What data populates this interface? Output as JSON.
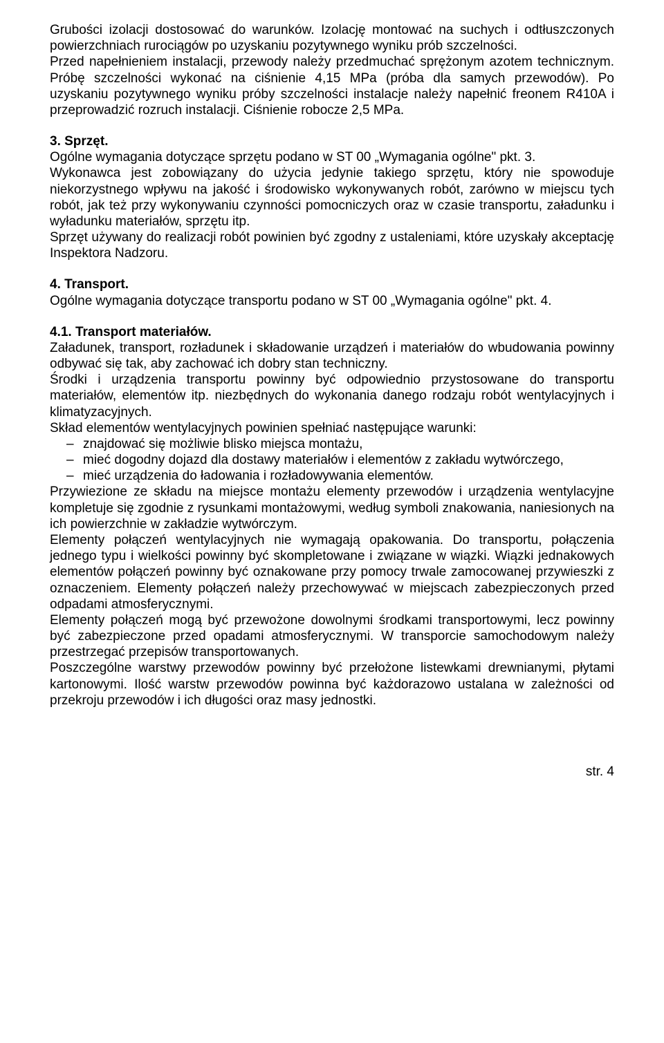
{
  "intro": {
    "p1": "Grubości izolacji dostosować do warunków. Izolację montować na suchych i odtłuszczonych powierzchniach rurociągów po uzyskaniu pozytywnego wyniku prób szczelności.",
    "p2": "Przed napełnieniem instalacji, przewody należy przedmuchać sprężonym azotem technicznym. Próbę szczelności wykonać na ciśnienie 4,15 MPa (próba dla samych przewodów). Po uzyskaniu pozytywnego wyniku próby szczelności instalacje należy napełnić freonem R410A i przeprowadzić rozruch instalacji. Ciśnienie robocze 2,5 MPa."
  },
  "sec3": {
    "title": "3. Sprzęt.",
    "p1": "Ogólne wymagania dotyczące sprzętu podano w ST 00 „Wymagania ogólne\" pkt. 3.",
    "p2": "Wykonawca jest zobowiązany do użycia jedynie takiego sprzętu, który nie spowoduje niekorzystnego wpływu na jakość i środowisko wykonywanych robót, zarówno w miejscu tych robót, jak też przy wykonywaniu czynności pomocniczych oraz w czasie transportu, załadunku i wyładunku materiałów, sprzętu itp.",
    "p3": "Sprzęt używany do realizacji robót powinien być zgodny z ustaleniami, które uzyskały akceptację Inspektora Nadzoru."
  },
  "sec4": {
    "title": "4. Transport.",
    "p1": "Ogólne wymagania dotyczące transportu podano w ST 00 „Wymagania ogólne\" pkt. 4."
  },
  "sec41": {
    "title": "4.1. Transport materiałów.",
    "p1": "Załadunek, transport, rozładunek i składowanie urządzeń i materiałów do wbudowania powinny odbywać się tak, aby zachować ich dobry stan techniczny.",
    "p2": "Środki i urządzenia transportu powinny być odpowiednio przystosowane do transportu materiałów, elementów itp. niezbędnych do wykonania danego rodzaju robót wentylacyjnych i klimatyzacyjnych.",
    "p3": "Skład elementów wentylacyjnych powinien spełniać następujące warunki:",
    "bullets": [
      "znajdować się możliwie blisko miejsca montażu,",
      "mieć dogodny dojazd dla dostawy materiałów i elementów z zakładu wytwórczego,",
      "mieć urządzenia do ładowania i rozładowywania elementów."
    ],
    "p4": "Przywiezione ze składu na miejsce montażu elementy przewodów i urządzenia wentylacyjne kompletuje się zgodnie z rysunkami montażowymi, według symboli znakowania, naniesionych na ich powierzchnie w zakładzie wytwórczym.",
    "p5": "Elementy połączeń wentylacyjnych nie wymagają opakowania. Do transportu, połączenia jednego typu i wielkości powinny być skompletowane i związane w wiązki. Wiązki jednakowych elementów połączeń powinny być oznakowane przy pomocy trwale zamocowanej przywieszki z oznaczeniem. Elementy połączeń należy przechowywać w miejscach zabezpieczonych przed odpadami atmosferycznymi.",
    "p6": "Elementy połączeń mogą być przewożone dowolnymi środkami transportowymi, lecz powinny być zabezpieczone przed opadami atmosferycznymi. W transporcie samochodowym należy przestrzegać przepisów transportowanych.",
    "p7": "Poszczególne warstwy przewodów powinny być przełożone listewkami drewnianymi, płytami kartonowymi. Ilość warstw przewodów powinna być każdorazowo ustalana w zależności od przekroju przewodów i ich długości oraz masy jednostki."
  },
  "footer": "str. 4"
}
